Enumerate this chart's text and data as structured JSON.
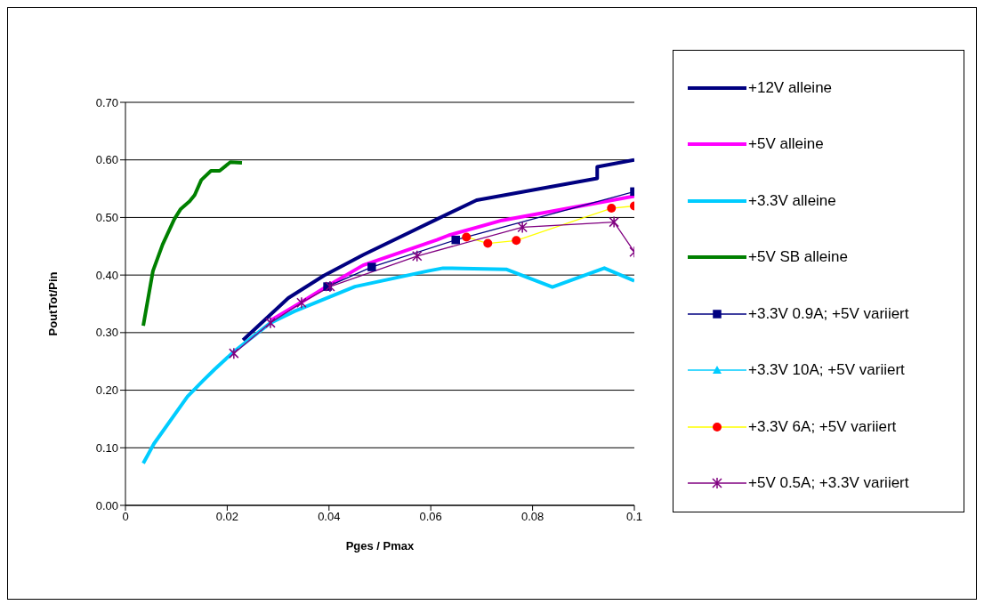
{
  "chart_data": {
    "type": "line",
    "xlabel": "Pges / Pmax",
    "ylabel": "PoutTot/Pin",
    "xlim": [
      0,
      0.1
    ],
    "xticks": [
      0,
      0.02,
      0.04,
      0.06,
      0.08,
      0.1
    ],
    "ylim": [
      0,
      0.7
    ],
    "yticks": [
      {
        "value": 0,
        "label": "0.00"
      },
      {
        "value": 0.1,
        "label": "0.10"
      },
      {
        "value": 0.2,
        "label": "0.20"
      },
      {
        "value": 0.3,
        "label": "0.30"
      },
      {
        "value": 0.4,
        "label": "0.40"
      },
      {
        "value": 0.5,
        "label": "0.50"
      },
      {
        "value": 0.6,
        "label": "0.60"
      },
      {
        "value": 0.7,
        "label": "0.70"
      }
    ],
    "grid": "y",
    "legend": "right",
    "series": [
      {
        "name": "+12V alleine",
        "color": "#000080",
        "marker": "none",
        "x": [
          0.0231,
          0.032,
          0.039,
          0.0467,
          0.0612,
          0.069,
          0.0927,
          0.0927,
          0.1
        ],
        "values": [
          0.287,
          0.36,
          0.399,
          0.435,
          0.497,
          0.53,
          0.568,
          0.588,
          0.6
        ]
      },
      {
        "name": "+5V alleine",
        "color": "#ff00ff",
        "marker": "none",
        "x": [
          0.0285,
          0.0344,
          0.0397,
          0.0467,
          0.0612,
          0.0635,
          0.074,
          0.1
        ],
        "values": [
          0.321,
          0.352,
          0.381,
          0.417,
          0.461,
          0.469,
          0.495,
          0.537
        ]
      },
      {
        "name": "+3.3V alleine",
        "color": "#00ccff",
        "marker": "none",
        "x": [
          0.0035,
          0.0056,
          0.0122,
          0.0152,
          0.0175,
          0.0213,
          0.0285,
          0.0332,
          0.0451,
          0.0594,
          0.0624,
          0.0748,
          0.0839,
          0.0941,
          0.1
        ],
        "values": [
          0.073,
          0.107,
          0.189,
          0.216,
          0.236,
          0.267,
          0.317,
          0.337,
          0.38,
          0.407,
          0.412,
          0.41,
          0.379,
          0.412,
          0.39
        ]
      },
      {
        "name": "+5V SB alleine",
        "color": "#008000",
        "marker": "none",
        "x": [
          0.0035,
          0.0054,
          0.0073,
          0.0096,
          0.0108,
          0.0126,
          0.0136,
          0.0149,
          0.0168,
          0.0185,
          0.0206,
          0.0229
        ],
        "values": [
          0.312,
          0.407,
          0.453,
          0.497,
          0.514,
          0.528,
          0.539,
          0.565,
          0.581,
          0.581,
          0.596,
          0.595
        ]
      },
      {
        "name": "+3.3V 0.9A; +5V variiert",
        "color": "#000080",
        "marker": "square",
        "x": [
          0.0397,
          0.0484,
          0.0649,
          0.1
        ],
        "values": [
          0.38,
          0.414,
          0.461,
          0.545
        ]
      },
      {
        "name": "+3.3V 10A; +5V variiert",
        "color": "#00ccff",
        "marker": "triangle"
      },
      {
        "name": "+3.3V 6A; +5V variiert",
        "color": "#ffff00",
        "colors": [
          "#ff0000",
          "#ff0000",
          "#ff0000",
          "#ff0000",
          "#ff0000"
        ],
        "marker": "circle",
        "x": [
          0.067,
          0.0712,
          0.0768,
          0.0955,
          0.1
        ],
        "values": [
          0.466,
          0.455,
          0.46,
          0.516,
          0.52
        ]
      },
      {
        "name": "+5V 0.5A; +3.3V variiert",
        "color": "#800080",
        "marker": "cross",
        "x": [
          0.0213,
          0.0285,
          0.0346,
          0.0402,
          0.0573,
          0.078,
          0.096,
          0.1
        ],
        "values": [
          0.264,
          0.317,
          0.352,
          0.38,
          0.433,
          0.483,
          0.492,
          0.44
        ]
      }
    ]
  }
}
